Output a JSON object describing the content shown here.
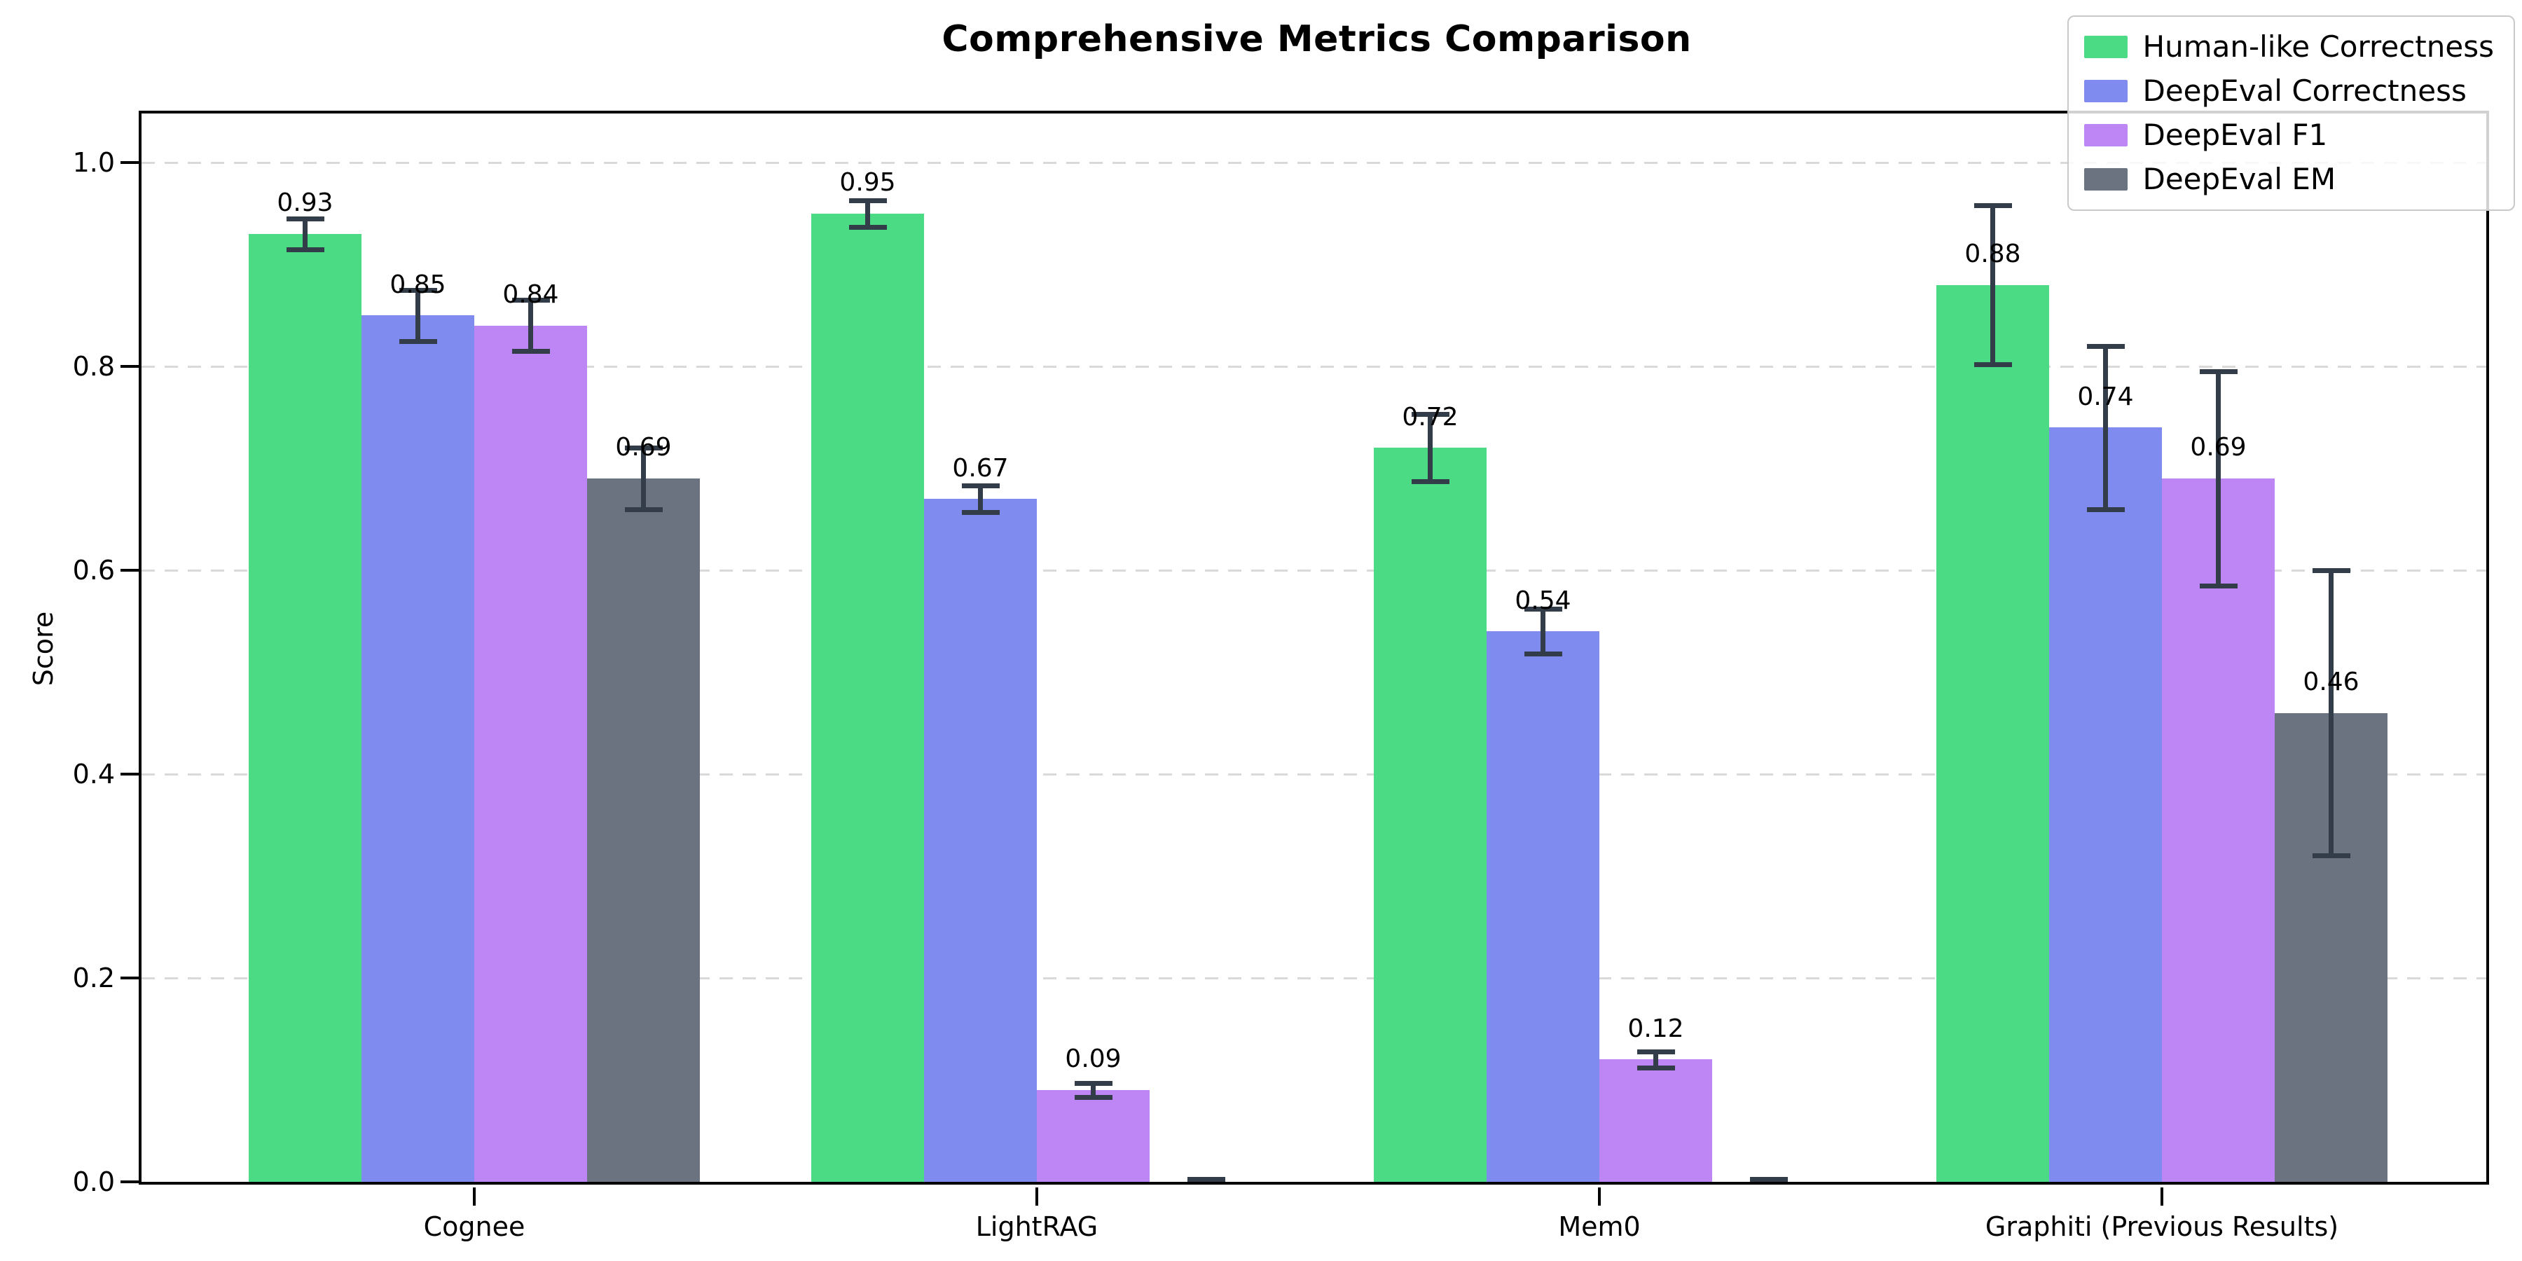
{
  "chart_data": {
    "type": "bar",
    "title": "Comprehensive Metrics Comparison",
    "ylabel": "Score",
    "categories": [
      "Cognee",
      "LightRAG",
      "Mem0",
      "Graphiti (Previous Results)"
    ],
    "series": [
      {
        "name": "Human-like Correctness",
        "color": "#4bdb84",
        "values": [
          0.93,
          0.95,
          0.72,
          0.88
        ],
        "errors": [
          0.015,
          0.013,
          0.033,
          0.078
        ],
        "labels": [
          "0.93",
          "0.95",
          "0.72",
          "0.88"
        ]
      },
      {
        "name": "DeepEval Correctness",
        "color": "#7f8bee",
        "values": [
          0.85,
          0.67,
          0.54,
          0.74
        ],
        "errors": [
          0.025,
          0.013,
          0.022,
          0.08
        ],
        "labels": [
          "0.85",
          "0.67",
          "0.54",
          "0.74"
        ]
      },
      {
        "name": "DeepEval F1",
        "color": "#bd86f4",
        "values": [
          0.84,
          0.09,
          0.12,
          0.69
        ],
        "errors": [
          0.025,
          0.007,
          0.008,
          0.105
        ],
        "labels": [
          "0.84",
          "0.09",
          "0.12",
          "0.69"
        ]
      },
      {
        "name": "DeepEval EM",
        "color": "#6b7280",
        "values": [
          0.69,
          0.0,
          0.0,
          0.46
        ],
        "errors": [
          0.03,
          0.003,
          0.003,
          0.14
        ],
        "labels": [
          "0.69",
          "",
          "",
          "0.46"
        ]
      }
    ],
    "yticks": [
      "0.0",
      "0.2",
      "0.4",
      "0.6",
      "0.8",
      "1.0"
    ],
    "ytick_values": [
      0.0,
      0.2,
      0.4,
      0.6,
      0.8,
      1.0
    ],
    "ylim": [
      0,
      1.05
    ],
    "grid": "horizontal-dashed",
    "grid_color": "#d9d9d9",
    "legend_position": "upper right",
    "error_bar_color": "#333d49",
    "axis_color": "#000000"
  }
}
